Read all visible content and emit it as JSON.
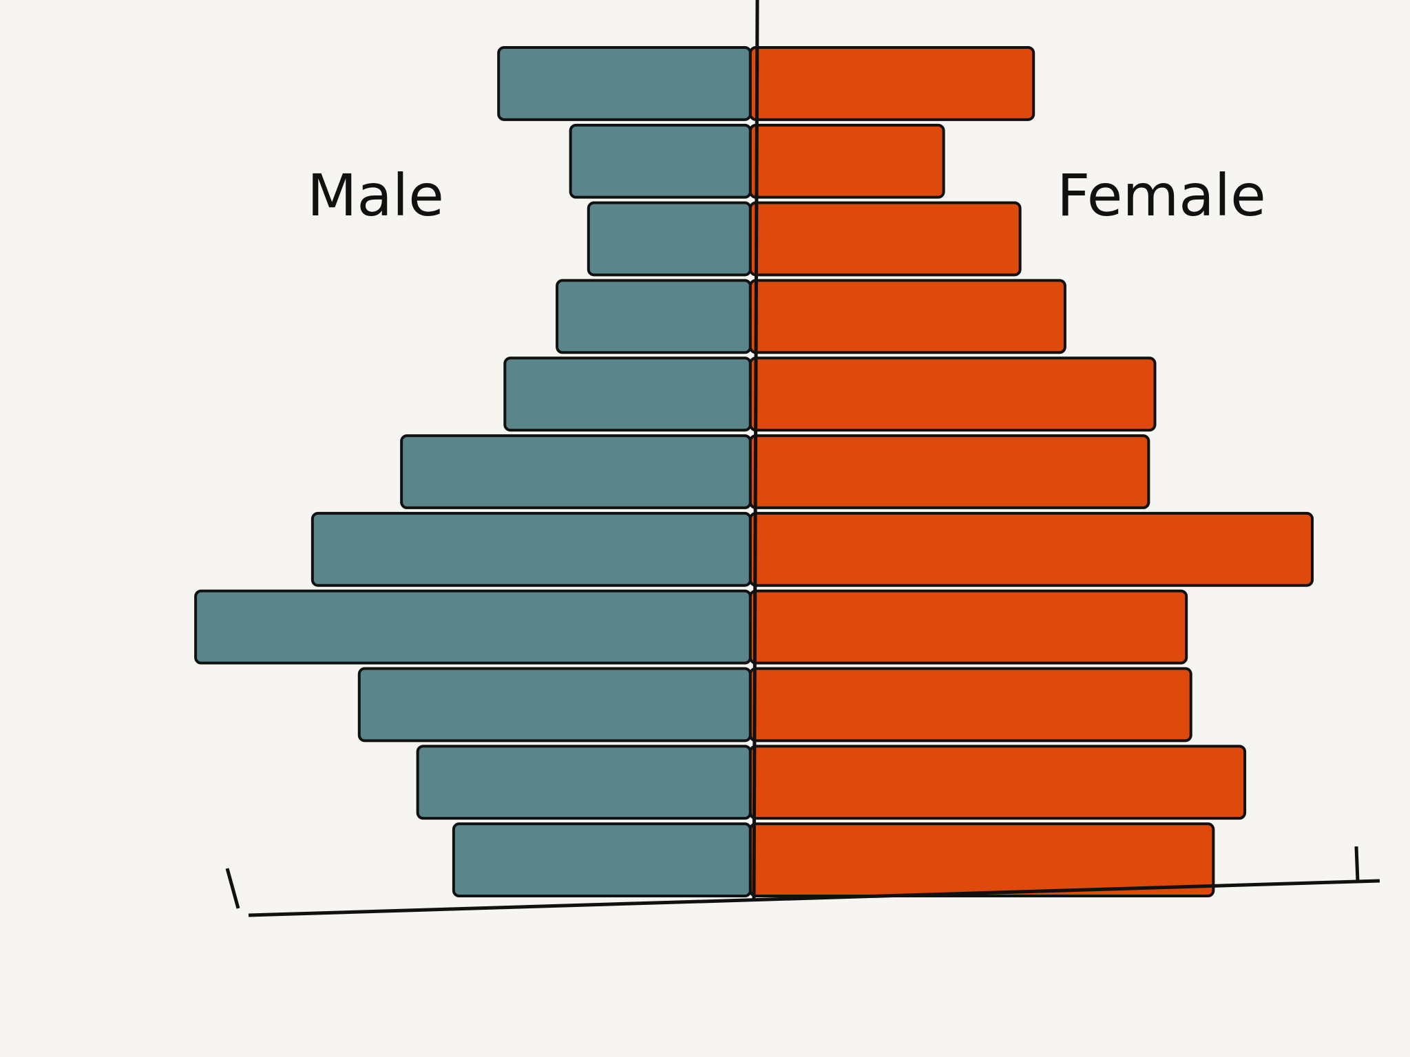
{
  "chart_data": {
    "type": "pyramid",
    "series": [
      {
        "name": "Male",
        "color": "#5a858a",
        "side": "left",
        "values": [
          28,
          20,
          18,
          21.5,
          27.3,
          38.8,
          48.7,
          61.7,
          43.5,
          37,
          33
        ]
      },
      {
        "name": "Female",
        "color": "#dd4a0c",
        "side": "right",
        "values": [
          31.5,
          21.5,
          30,
          35,
          45,
          44.3,
          62.5,
          48.5,
          49,
          55,
          51.5
        ]
      }
    ],
    "xlim": [
      -65,
      70
    ]
  }
}
